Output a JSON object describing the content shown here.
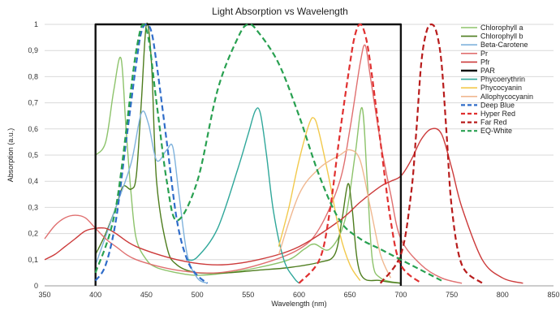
{
  "chart_data": {
    "type": "line",
    "title": "Light Absorption vs Wavelength",
    "xlabel": "Wavelength (nm)",
    "ylabel": "Absorption (a.u.)",
    "xlim": [
      350,
      850
    ],
    "ylim": [
      0,
      1
    ],
    "xticks": [
      350,
      400,
      450,
      500,
      550,
      600,
      650,
      700,
      750,
      800,
      850
    ],
    "yticks": [
      0,
      0.1,
      0.2,
      0.3,
      0.4,
      0.5,
      0.6,
      0.7,
      0.8,
      0.9,
      1
    ],
    "ytick_labels": [
      "0",
      "0,1",
      "0,2",
      "0,3",
      "0,4",
      "0,5",
      "0,6",
      "0,7",
      "0,8",
      "0,9",
      "1"
    ],
    "grid": "horizontal",
    "legend_position": "right",
    "series": [
      {
        "name": "Chlorophyll a",
        "color": "#8dc36b",
        "dash": false,
        "x": [
          400,
          410,
          418,
          425,
          430,
          435,
          440,
          450,
          460,
          480,
          500,
          530,
          560,
          590,
          605,
          615,
          630,
          645,
          655,
          662,
          667,
          672,
          680,
          700
        ],
        "y": [
          0.5,
          0.55,
          0.75,
          0.87,
          0.6,
          0.35,
          0.18,
          0.1,
          0.07,
          0.05,
          0.04,
          0.05,
          0.07,
          0.1,
          0.14,
          0.16,
          0.14,
          0.25,
          0.5,
          0.68,
          0.4,
          0.1,
          0.03,
          0.01
        ]
      },
      {
        "name": "Chlorophyll b",
        "color": "#4e7d1e",
        "dash": false,
        "x": [
          400,
          410,
          420,
          427,
          435,
          440,
          445,
          450,
          455,
          460,
          470,
          480,
          500,
          530,
          560,
          590,
          620,
          635,
          642,
          648,
          652,
          660,
          680,
          700
        ],
        "y": [
          0.12,
          0.2,
          0.3,
          0.38,
          0.37,
          0.42,
          0.7,
          1.0,
          0.85,
          0.4,
          0.15,
          0.08,
          0.05,
          0.05,
          0.06,
          0.07,
          0.09,
          0.12,
          0.25,
          0.39,
          0.3,
          0.05,
          0.02,
          0.01
        ]
      },
      {
        "name": "Beta-Carotene",
        "color": "#7fb2dc",
        "dash": false,
        "x": [
          400,
          420,
          435,
          445,
          452,
          460,
          470,
          476,
          482,
          490,
          500,
          510
        ],
        "y": [
          0.08,
          0.3,
          0.47,
          0.66,
          0.62,
          0.48,
          0.52,
          0.53,
          0.35,
          0.12,
          0.03,
          0.01
        ]
      },
      {
        "name": "Pr",
        "color": "#e07070",
        "dash": false,
        "x": [
          350,
          360,
          370,
          380,
          390,
          400,
          410,
          420,
          440,
          480,
          520,
          560,
          600,
          620,
          640,
          650,
          660,
          665,
          670,
          680,
          690,
          700,
          720,
          740,
          760
        ],
        "y": [
          0.18,
          0.23,
          0.26,
          0.27,
          0.26,
          0.22,
          0.18,
          0.15,
          0.1,
          0.06,
          0.05,
          0.08,
          0.14,
          0.22,
          0.4,
          0.6,
          0.85,
          0.92,
          0.8,
          0.55,
          0.35,
          0.18,
          0.08,
          0.03,
          0.01
        ]
      },
      {
        "name": "Pfr",
        "color": "#cc3a3a",
        "dash": false,
        "x": [
          350,
          360,
          370,
          380,
          390,
          400,
          410,
          420,
          440,
          480,
          520,
          560,
          600,
          640,
          660,
          680,
          690,
          700,
          710,
          720,
          730,
          740,
          750,
          760,
          780,
          800,
          820
        ],
        "y": [
          0.1,
          0.12,
          0.15,
          0.18,
          0.21,
          0.22,
          0.22,
          0.2,
          0.15,
          0.1,
          0.08,
          0.1,
          0.15,
          0.25,
          0.32,
          0.38,
          0.4,
          0.42,
          0.48,
          0.56,
          0.6,
          0.58,
          0.45,
          0.3,
          0.1,
          0.03,
          0.01
        ]
      },
      {
        "name": "PAR",
        "color": "#111111",
        "dash": false,
        "width": 2.4,
        "x": [
          400,
          400,
          700,
          700
        ],
        "y": [
          0,
          1,
          1,
          0
        ]
      },
      {
        "name": "Phycoerythrin",
        "color": "#2fa79a",
        "dash": false,
        "x": [
          490,
          500,
          520,
          540,
          550,
          557,
          562,
          568,
          575,
          585,
          595,
          600
        ],
        "y": [
          0.1,
          0.11,
          0.22,
          0.45,
          0.58,
          0.67,
          0.66,
          0.5,
          0.28,
          0.1,
          0.03,
          0.01
        ]
      },
      {
        "name": "Phycocyanin",
        "color": "#f2c94c",
        "dash": false,
        "x": [
          580,
          590,
          600,
          610,
          615,
          620,
          630,
          640,
          650,
          660
        ],
        "y": [
          0.15,
          0.3,
          0.48,
          0.62,
          0.64,
          0.58,
          0.4,
          0.2,
          0.08,
          0.02
        ]
      },
      {
        "name": "Allophycocyanin",
        "color": "#f0b890",
        "dash": false,
        "x": [
          580,
          600,
          620,
          640,
          650,
          660,
          670,
          680,
          690
        ],
        "y": [
          0.12,
          0.35,
          0.45,
          0.5,
          0.52,
          0.48,
          0.3,
          0.12,
          0.03
        ]
      },
      {
        "name": "Deep Blue",
        "color": "#2f6cc9",
        "dash": true,
        "x": [
          400,
          410,
          420,
          430,
          440,
          445,
          450,
          455,
          460,
          470,
          480,
          490,
          500,
          510
        ],
        "y": [
          0.02,
          0.08,
          0.25,
          0.55,
          0.85,
          0.97,
          1.0,
          0.97,
          0.85,
          0.55,
          0.25,
          0.1,
          0.04,
          0.01
        ]
      },
      {
        "name": "Hyper Red",
        "color": "#e03030",
        "dash": true,
        "x": [
          600,
          620,
          630,
          640,
          650,
          655,
          660,
          665,
          670,
          680,
          690,
          700,
          720
        ],
        "y": [
          0.01,
          0.1,
          0.28,
          0.58,
          0.85,
          0.96,
          1.0,
          0.96,
          0.85,
          0.55,
          0.25,
          0.08,
          0.01
        ]
      },
      {
        "name": "Far Red",
        "color": "#b81c1c",
        "dash": true,
        "x": [
          680,
          700,
          710,
          715,
          720,
          725,
          730,
          735,
          740,
          745,
          750,
          760,
          780
        ],
        "y": [
          0.01,
          0.12,
          0.35,
          0.58,
          0.85,
          0.97,
          1.0,
          0.97,
          0.85,
          0.58,
          0.3,
          0.08,
          0.01
        ]
      },
      {
        "name": "EQ-White",
        "color": "#28a050",
        "dash": true,
        "x": [
          400,
          420,
          440,
          450,
          460,
          470,
          480,
          500,
          520,
          540,
          550,
          560,
          580,
          600,
          620,
          640,
          660,
          680,
          700,
          720,
          740
        ],
        "y": [
          0.05,
          0.3,
          0.9,
          0.98,
          0.7,
          0.4,
          0.25,
          0.4,
          0.75,
          0.95,
          1.0,
          0.97,
          0.85,
          0.65,
          0.42,
          0.25,
          0.18,
          0.14,
          0.1,
          0.06,
          0.02
        ]
      }
    ]
  }
}
